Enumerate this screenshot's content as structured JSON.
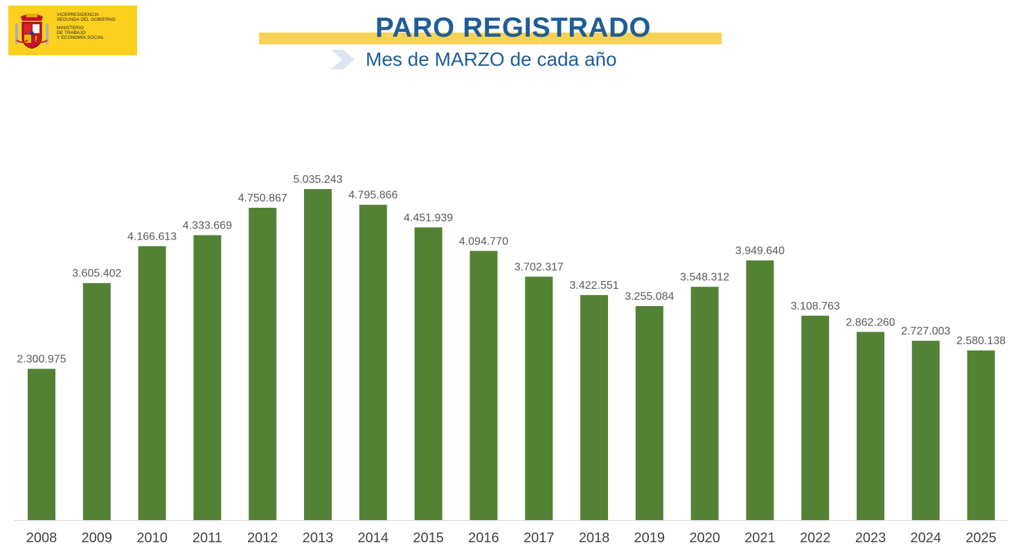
{
  "logo": {
    "line1": "VICEPRESIDENCIA",
    "line2": "SEGUNDA DEL GOBIERNO",
    "line3": "MINISTERIO",
    "line4": "DE TRABAJO",
    "line5": "Y ECONOMÍA SOCIAL"
  },
  "header": {
    "title": "PARO REGISTRADO",
    "subtitle": "Mes de MARZO de cada año"
  },
  "colors": {
    "bar": "#548235",
    "title": "#1e5d98",
    "band": "#f6d257",
    "logo_bg": "#fbd01f"
  },
  "chart_data": {
    "type": "bar",
    "categories": [
      "2008",
      "2009",
      "2010",
      "2011",
      "2012",
      "2013",
      "2014",
      "2015",
      "2016",
      "2017",
      "2018",
      "2019",
      "2020",
      "2021",
      "2022",
      "2023",
      "2024",
      "2025"
    ],
    "values": [
      2300975,
      3605402,
      4166613,
      4333669,
      4750867,
      5035243,
      4795866,
      4451939,
      4094770,
      3702317,
      3422551,
      3255084,
      3548312,
      3949640,
      3108763,
      2862260,
      2727003,
      2580138
    ],
    "value_labels": [
      "2.300.975",
      "3.605.402",
      "4.166.613",
      "4.333.669",
      "4.750.867",
      "5.035.243",
      "4.795.866",
      "4.451.939",
      "4.094.770",
      "3.702.317",
      "3.422.551",
      "3.255.084",
      "3.548.312",
      "3.949.640",
      "3.108.763",
      "2.862.260",
      "2.727.003",
      "2.580.138"
    ],
    "title": "PARO REGISTRADO",
    "subtitle": "Mes de MARZO de cada año",
    "xlabel": "",
    "ylabel": "",
    "ylim": [
      0,
      5035243
    ],
    "grid": false,
    "legend": "none"
  }
}
